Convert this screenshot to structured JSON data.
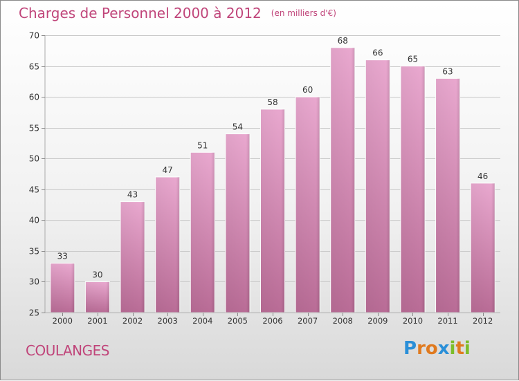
{
  "title": "Charges de Personnel 2000 à 2012",
  "subtitle": "(en milliers d'€)",
  "commune": "COULANGES",
  "logo": {
    "text": "Proxiti",
    "letters": [
      "P",
      "r",
      "o",
      "x",
      "i",
      "t",
      "i"
    ],
    "colors": [
      "#2a8fd8",
      "#e07a1f",
      "#e07a1f",
      "#2a8fd8",
      "#7cbd2a",
      "#e07a1f",
      "#7cbd2a"
    ]
  },
  "colors": {
    "title": "#c0457a",
    "bar_top": "#e9a8cf",
    "bar_bottom": "#b96c96",
    "axis_text": "#333333",
    "grid": "#c8c8c8"
  },
  "chart_data": {
    "type": "bar",
    "title": "Charges de Personnel 2000 à 2012",
    "subtitle": "(en milliers d'€)",
    "categories": [
      "2000",
      "2001",
      "2002",
      "2003",
      "2004",
      "2005",
      "2006",
      "2007",
      "2008",
      "2009",
      "2010",
      "2011",
      "2012"
    ],
    "values": [
      33,
      30,
      43,
      47,
      51,
      54,
      58,
      60,
      68,
      66,
      65,
      63,
      46
    ],
    "ylim": [
      25,
      70
    ],
    "yticks": [
      25,
      30,
      35,
      40,
      45,
      50,
      55,
      60,
      65,
      70
    ],
    "grid": true,
    "data_labels": true
  }
}
